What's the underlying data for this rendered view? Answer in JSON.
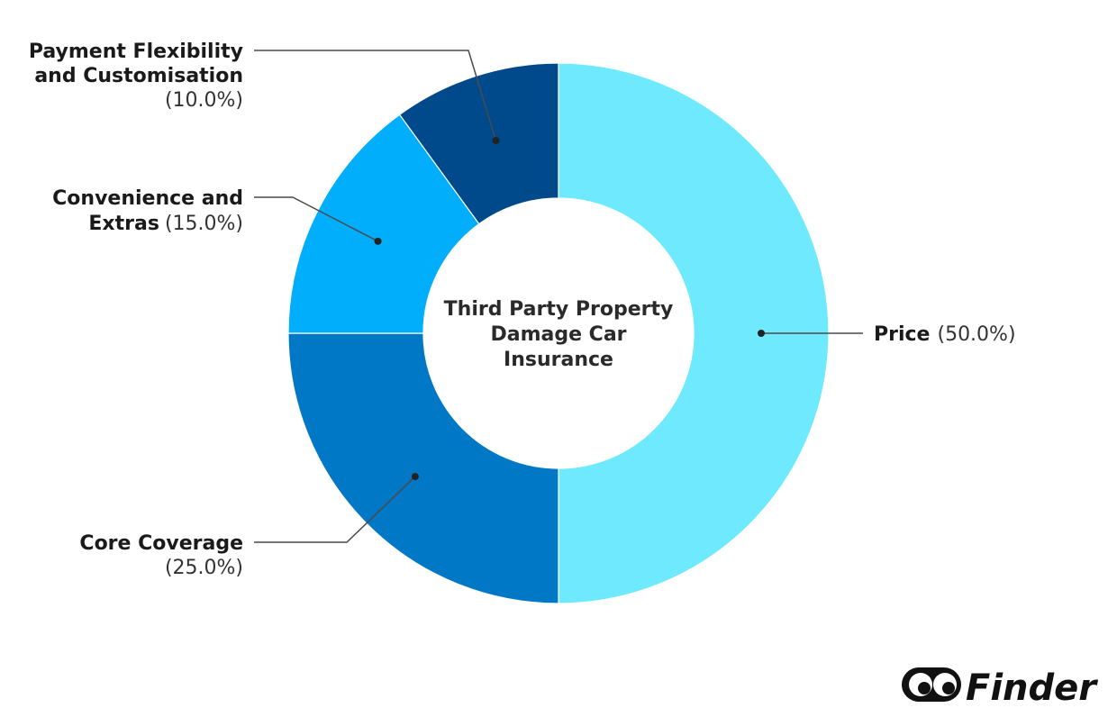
{
  "chart_data": {
    "type": "pie",
    "variant": "donut",
    "title": "Third Party Property Damage Car Insurance",
    "title_lines": [
      "Third Party Property",
      "Damage Car",
      "Insurance"
    ],
    "slices": [
      {
        "name": "Price",
        "name_lines": [
          "Price"
        ],
        "value": 50.0,
        "pct_label": "(50.0%)",
        "color": "#6ee9fd"
      },
      {
        "name": "Core Coverage",
        "name_lines": [
          "Core Coverage"
        ],
        "value": 25.0,
        "pct_label": "(25.0%)",
        "color": "#0078c6"
      },
      {
        "name": "Convenience and Extras",
        "name_lines": [
          "Convenience and",
          "Extras"
        ],
        "value": 15.0,
        "pct_label": "(15.0%)",
        "color": "#00aefc"
      },
      {
        "name": "Payment Flexibility and Customisation",
        "name_lines": [
          "Payment Flexibility",
          "and Customisation"
        ],
        "value": 10.0,
        "pct_label": "(10.0%)",
        "color": "#004a8b"
      }
    ]
  },
  "brand": {
    "logo_text": "Finder",
    "logo_icon": "finder-eyes-icon"
  }
}
